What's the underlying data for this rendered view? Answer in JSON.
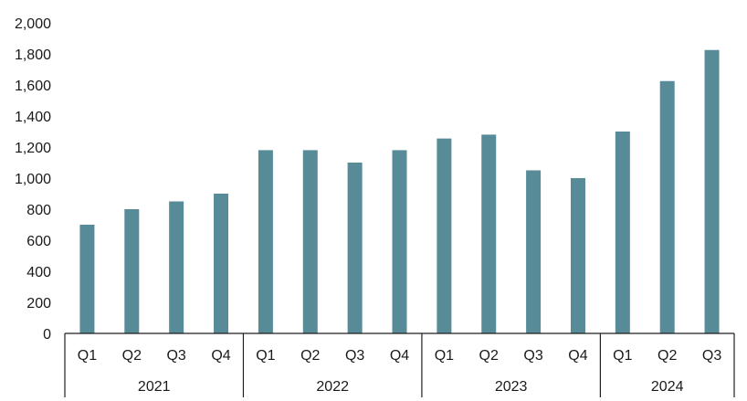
{
  "chart_data": {
    "type": "bar",
    "title": "",
    "xlabel": "",
    "ylabel": "",
    "ylim": [
      0,
      2000
    ],
    "yticks": [
      0,
      200,
      400,
      600,
      800,
      1000,
      1200,
      1400,
      1600,
      1800,
      2000
    ],
    "ytick_labels": [
      "0",
      "200",
      "400",
      "600",
      "800",
      "1,000",
      "1,200",
      "1,400",
      "1,600",
      "1,800",
      "2,000"
    ],
    "grid": false,
    "bar_color": "#588b98",
    "groups": [
      {
        "label": "2021",
        "categories": [
          "Q1",
          "Q2",
          "Q3",
          "Q4"
        ],
        "values": [
          700,
          800,
          850,
          900
        ]
      },
      {
        "label": "2022",
        "categories": [
          "Q1",
          "Q2",
          "Q3",
          "Q4"
        ],
        "values": [
          1180,
          1180,
          1100,
          1180
        ]
      },
      {
        "label": "2023",
        "categories": [
          "Q1",
          "Q2",
          "Q3",
          "Q4"
        ],
        "values": [
          1255,
          1280,
          1050,
          1000
        ]
      },
      {
        "label": "2024",
        "categories": [
          "Q1",
          "Q2",
          "Q3"
        ],
        "values": [
          1300,
          1625,
          1825
        ]
      }
    ]
  }
}
